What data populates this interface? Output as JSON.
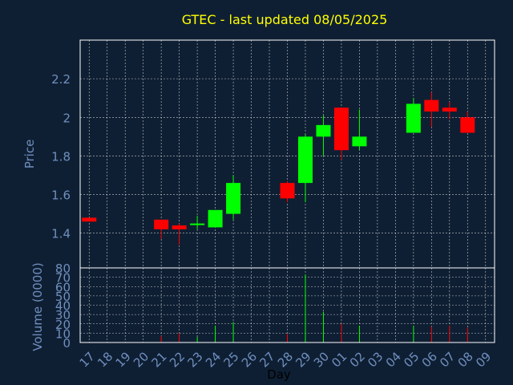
{
  "chart_data": {
    "type": "candlestick",
    "title": "GTEC - last updated 08/05/2025",
    "xlabel": "Day",
    "x_tick_labels": [
      "17",
      "18",
      "19",
      "20",
      "21",
      "22",
      "23",
      "24",
      "25",
      "26",
      "27",
      "28",
      "29",
      "30",
      "01",
      "02",
      "03",
      "04",
      "05",
      "06",
      "07",
      "08",
      "09"
    ],
    "price_panel": {
      "ylabel": "Price",
      "ylim": [
        1.22,
        2.4
      ],
      "yticks": [
        1.4,
        1.6,
        1.8,
        2.0,
        2.2
      ],
      "ytick_labels": [
        "1.4",
        "1.6",
        "1.8",
        "2",
        "2.2"
      ],
      "grid": true
    },
    "volume_panel": {
      "ylabel": "Volume (0000)",
      "ylim": [
        0,
        80
      ],
      "yticks": [
        0,
        10,
        20,
        30,
        40,
        50,
        60,
        70,
        80
      ],
      "ytick_labels": [
        "0",
        "10",
        "20",
        "30",
        "40",
        "50",
        "60",
        "70",
        "80"
      ],
      "grid": true
    },
    "candles": [
      {
        "x": "17",
        "open": 1.48,
        "high": 1.48,
        "low": 1.46,
        "close": 1.46,
        "volume": 0
      },
      {
        "x": "21",
        "open": 1.47,
        "high": 1.47,
        "low": 1.37,
        "close": 1.42,
        "volume": 7
      },
      {
        "x": "22",
        "open": 1.44,
        "high": 1.45,
        "low": 1.34,
        "close": 1.42,
        "volume": 10
      },
      {
        "x": "23",
        "open": 1.45,
        "high": 1.49,
        "low": 1.42,
        "close": 1.45,
        "volume": 6
      },
      {
        "x": "24",
        "open": 1.43,
        "high": 1.52,
        "low": 1.43,
        "close": 1.52,
        "volume": 18
      },
      {
        "x": "25",
        "open": 1.5,
        "high": 1.7,
        "low": 1.47,
        "close": 1.66,
        "volume": 22
      },
      {
        "x": "28",
        "open": 1.66,
        "high": 1.67,
        "low": 1.56,
        "close": 1.58,
        "volume": 9
      },
      {
        "x": "29",
        "open": 1.66,
        "high": 1.91,
        "low": 1.56,
        "close": 1.9,
        "volume": 73
      },
      {
        "x": "30",
        "open": 1.9,
        "high": 2.01,
        "low": 1.8,
        "close": 1.96,
        "volume": 33
      },
      {
        "x": "01",
        "open": 2.05,
        "high": 2.05,
        "low": 1.78,
        "close": 1.83,
        "volume": 20
      },
      {
        "x": "02",
        "open": 1.85,
        "high": 2.04,
        "low": 1.83,
        "close": 1.9,
        "volume": 18
      },
      {
        "x": "05",
        "open": 1.92,
        "high": 2.1,
        "low": 1.92,
        "close": 2.07,
        "volume": 18
      },
      {
        "x": "06",
        "open": 2.09,
        "high": 2.13,
        "low": 1.95,
        "close": 2.03,
        "volume": 17
      },
      {
        "x": "07",
        "open": 2.05,
        "high": 2.08,
        "low": 1.99,
        "close": 2.03,
        "volume": 18
      },
      {
        "x": "08",
        "open": 2.0,
        "high": 2.03,
        "low": 1.92,
        "close": 1.92,
        "volume": 16
      }
    ],
    "up_color": "#00ff00",
    "down_color": "#ff0000",
    "title_color": "#ffff00",
    "axis_text_color": "#6f8fbf",
    "background_color": "#0f1f33",
    "frame_color": "#ffffff"
  }
}
